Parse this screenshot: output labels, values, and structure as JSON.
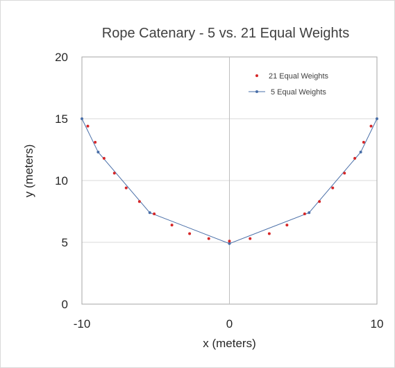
{
  "chart_data": {
    "type": "scatter",
    "title": "Rope Catenary - 5 vs. 21 Equal Weights",
    "xlabel": "x (meters)",
    "ylabel": "y (meters)",
    "xlim": [
      -10,
      10
    ],
    "ylim": [
      0,
      20
    ],
    "x_ticks": [
      -10,
      0,
      10
    ],
    "y_ticks": [
      0,
      5,
      10,
      15,
      20
    ],
    "x_tick_labels": [
      "-10",
      "0",
      "10"
    ],
    "y_tick_labels": [
      "0",
      "5",
      "10",
      "15",
      "20"
    ],
    "grid": "horizontal",
    "legend_position": "top-right",
    "series": [
      {
        "name": "21 Equal Weights",
        "style": "markers",
        "color": "#d62728",
        "points": [
          [
            -9.6,
            14.4
          ],
          [
            -9.1,
            13.1
          ],
          [
            -8.5,
            11.8
          ],
          [
            -7.8,
            10.6
          ],
          [
            -7.0,
            9.4
          ],
          [
            -6.1,
            8.3
          ],
          [
            -5.1,
            7.3
          ],
          [
            -3.9,
            6.4
          ],
          [
            -2.7,
            5.7
          ],
          [
            -1.4,
            5.3
          ],
          [
            0.0,
            5.1
          ],
          [
            1.4,
            5.3
          ],
          [
            2.7,
            5.7
          ],
          [
            3.9,
            6.4
          ],
          [
            5.1,
            7.3
          ],
          [
            6.1,
            8.3
          ],
          [
            7.0,
            9.4
          ],
          [
            7.8,
            10.6
          ],
          [
            8.5,
            11.8
          ],
          [
            9.1,
            13.1
          ],
          [
            9.6,
            14.4
          ]
        ]
      },
      {
        "name": "5 Equal Weights",
        "style": "line-markers",
        "color": "#4a6fa8",
        "points": [
          [
            -10,
            15.0
          ],
          [
            -8.9,
            12.3
          ],
          [
            -5.4,
            7.4
          ],
          [
            0,
            4.9
          ],
          [
            5.4,
            7.4
          ],
          [
            8.9,
            12.3
          ],
          [
            10,
            15.0
          ]
        ]
      }
    ]
  }
}
